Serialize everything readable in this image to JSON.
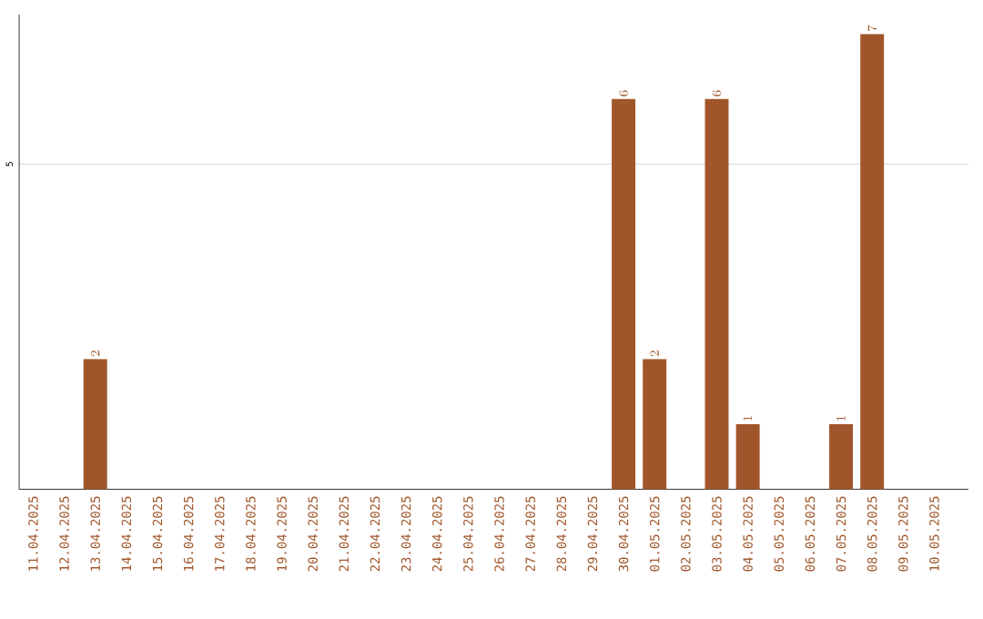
{
  "chart_data": {
    "type": "bar",
    "categories": [
      "11.04.2025",
      "12.04.2025",
      "13.04.2025",
      "14.04.2025",
      "15.04.2025",
      "16.04.2025",
      "17.04.2025",
      "18.04.2025",
      "19.04.2025",
      "20.04.2025",
      "21.04.2025",
      "22.04.2025",
      "23.04.2025",
      "24.04.2025",
      "25.04.2025",
      "26.04.2025",
      "27.04.2025",
      "28.04.2025",
      "29.04.2025",
      "30.04.2025",
      "01.05.2025",
      "02.05.2025",
      "03.05.2025",
      "04.05.2025",
      "05.05.2025",
      "06.05.2025",
      "07.05.2025",
      "08.05.2025",
      "09.05.2025",
      "10.05.2025"
    ],
    "values": [
      null,
      null,
      2,
      null,
      null,
      null,
      null,
      null,
      null,
      null,
      null,
      null,
      null,
      null,
      null,
      null,
      null,
      null,
      null,
      6,
      2,
      null,
      6,
      1,
      null,
      null,
      1,
      7,
      null,
      null
    ],
    "color": "#a0562a",
    "ylim": [
      0,
      7.3
    ],
    "yticks": [
      5
    ],
    "grid": "y",
    "data_labels": true
  }
}
